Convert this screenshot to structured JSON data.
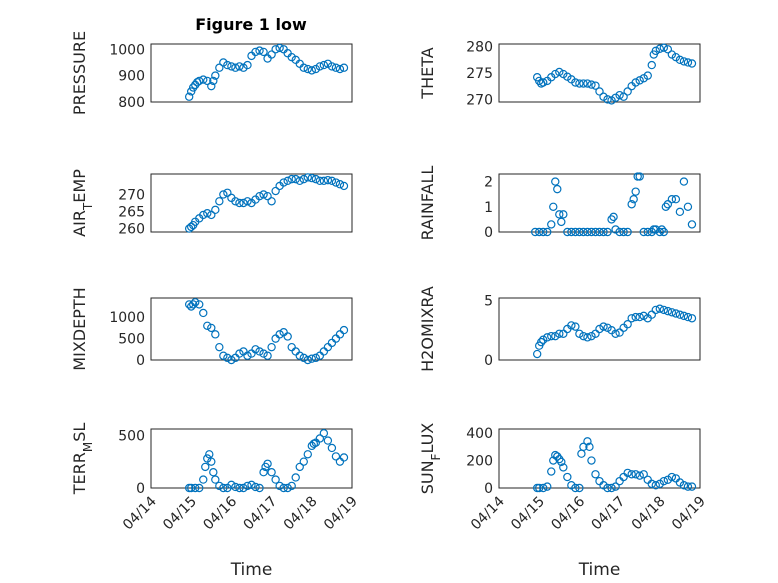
{
  "figure": {
    "title": "Figure 1 low",
    "marker_color": "#0072bd",
    "grid": "major and minor"
  },
  "chart_data": [
    {
      "type": "scatter",
      "ylabel": "PRESSURE",
      "xlabel": "",
      "xlim": [
        "04/14",
        "04/19"
      ],
      "xticks": [
        "04/14",
        "04/15",
        "04/16",
        "04/17",
        "04/18",
        "04/19"
      ],
      "ylim": [
        800,
        1020
      ],
      "yticks": [
        800,
        900,
        1000
      ],
      "x": [
        0.95,
        1.0,
        1.05,
        1.1,
        1.15,
        1.2,
        1.3,
        1.4,
        1.5,
        1.55,
        1.6,
        1.7,
        1.8,
        1.9,
        2.0,
        2.1,
        2.2,
        2.3,
        2.4,
        2.5,
        2.6,
        2.7,
        2.8,
        2.9,
        3.0,
        3.1,
        3.2,
        3.3,
        3.4,
        3.5,
        3.6,
        3.7,
        3.8,
        3.9,
        4.0,
        4.1,
        4.2,
        4.3,
        4.4,
        4.5,
        4.6,
        4.7,
        4.8
      ],
      "y": [
        820,
        840,
        855,
        865,
        875,
        880,
        885,
        880,
        860,
        880,
        900,
        930,
        950,
        940,
        935,
        930,
        935,
        930,
        940,
        975,
        990,
        995,
        990,
        965,
        980,
        1000,
        1005,
        1000,
        985,
        970,
        960,
        945,
        930,
        925,
        920,
        925,
        935,
        940,
        945,
        935,
        930,
        925,
        930
      ]
    },
    {
      "type": "scatter",
      "ylabel": "THETA",
      "xlabel": "",
      "xlim": [
        "04/14",
        "04/19"
      ],
      "xticks": [
        "04/14",
        "04/15",
        "04/16",
        "04/17",
        "04/18",
        "04/19"
      ],
      "ylim": [
        269.5,
        280.5
      ],
      "yticks": [
        270,
        275,
        280
      ],
      "x": [
        0.95,
        1.0,
        1.05,
        1.1,
        1.2,
        1.3,
        1.4,
        1.5,
        1.6,
        1.7,
        1.8,
        1.9,
        2.0,
        2.1,
        2.2,
        2.3,
        2.4,
        2.5,
        2.6,
        2.7,
        2.8,
        2.9,
        3.0,
        3.1,
        3.2,
        3.3,
        3.4,
        3.5,
        3.6,
        3.7,
        3.8,
        3.85,
        3.9,
        4.0,
        4.1,
        4.2,
        4.3,
        4.4,
        4.5,
        4.6,
        4.7,
        4.8
      ],
      "y": [
        274.2,
        273.5,
        273.0,
        273.2,
        273.5,
        274.2,
        274.8,
        275.2,
        274.8,
        274.3,
        273.8,
        273.2,
        273.0,
        273.0,
        273.0,
        272.8,
        272.6,
        271.5,
        270.5,
        270.0,
        269.8,
        270.3,
        270.8,
        270.5,
        271.5,
        272.5,
        273.2,
        273.6,
        274.0,
        274.5,
        276.5,
        278.5,
        279.2,
        279.6,
        279.8,
        279.5,
        278.5,
        278.0,
        277.5,
        277.2,
        277.0,
        276.8
      ]
    },
    {
      "type": "scatter",
      "ylabel": "AIR_TEMP",
      "xlabel": "",
      "xlim": [
        "04/14",
        "04/19"
      ],
      "xticks": [
        "04/14",
        "04/15",
        "04/16",
        "04/17",
        "04/18",
        "04/19"
      ],
      "ylim": [
        259,
        276
      ],
      "yticks": [
        260,
        265,
        270
      ],
      "x": [
        0.95,
        1.0,
        1.05,
        1.1,
        1.2,
        1.3,
        1.4,
        1.5,
        1.6,
        1.7,
        1.8,
        1.9,
        2.0,
        2.1,
        2.2,
        2.3,
        2.4,
        2.5,
        2.6,
        2.7,
        2.8,
        2.9,
        3.0,
        3.1,
        3.2,
        3.3,
        3.4,
        3.5,
        3.6,
        3.7,
        3.8,
        3.9,
        4.0,
        4.1,
        4.2,
        4.3,
        4.4,
        4.5,
        4.6,
        4.7,
        4.8
      ],
      "y": [
        260,
        260.5,
        261,
        262,
        263,
        264,
        264.5,
        264,
        265.5,
        268,
        270,
        270.5,
        269,
        268,
        267.5,
        267.5,
        268,
        267.5,
        268.5,
        269.5,
        270,
        269.5,
        268,
        271,
        272.5,
        273.5,
        274,
        274.5,
        274.5,
        274,
        274.5,
        275,
        274.8,
        274.5,
        274,
        274,
        274.2,
        274,
        273.5,
        273,
        272.5
      ]
    },
    {
      "type": "scatter",
      "ylabel": "RAINFALL",
      "xlabel": "",
      "xlim": [
        "04/14",
        "04/19"
      ],
      "xticks": [
        "04/14",
        "04/15",
        "04/16",
        "04/17",
        "04/18",
        "04/19"
      ],
      "ylim": [
        0,
        2.3
      ],
      "yticks": [
        0,
        1,
        2
      ],
      "x": [
        0.9,
        1.0,
        1.1,
        1.2,
        1.3,
        1.35,
        1.4,
        1.45,
        1.5,
        1.55,
        1.6,
        1.7,
        1.8,
        1.9,
        2.0,
        2.1,
        2.2,
        2.3,
        2.4,
        2.5,
        2.6,
        2.7,
        2.8,
        2.85,
        2.9,
        3.0,
        3.1,
        3.2,
        3.3,
        3.35,
        3.4,
        3.45,
        3.5,
        3.6,
        3.7,
        3.8,
        3.85,
        3.9,
        4.0,
        4.05,
        4.1,
        4.15,
        4.2,
        4.3,
        4.4,
        4.5,
        4.6,
        4.7,
        4.8
      ],
      "y": [
        0,
        0,
        0,
        0,
        0.3,
        1.0,
        2.0,
        1.7,
        0.7,
        0.4,
        0.7,
        0,
        0,
        0,
        0,
        0,
        0,
        0,
        0,
        0,
        0,
        0,
        0.5,
        0.6,
        0.1,
        0,
        0,
        0,
        1.1,
        1.3,
        1.6,
        2.2,
        2.2,
        0,
        0,
        0,
        0.1,
        0.1,
        0,
        0.1,
        0,
        1.0,
        1.1,
        1.3,
        1.3,
        0.8,
        2.0,
        1.0,
        0.3
      ]
    },
    {
      "type": "scatter",
      "ylabel": "MIXDEPTH",
      "xlabel": "",
      "xlim": [
        "04/14",
        "04/19"
      ],
      "xticks": [
        "04/14",
        "04/15",
        "04/16",
        "04/17",
        "04/18",
        "04/19"
      ],
      "ylim": [
        0,
        1450
      ],
      "yticks": [
        0,
        500,
        1000
      ],
      "x": [
        0.95,
        1.0,
        1.05,
        1.1,
        1.2,
        1.3,
        1.4,
        1.5,
        1.6,
        1.7,
        1.8,
        1.9,
        2.0,
        2.1,
        2.2,
        2.3,
        2.4,
        2.5,
        2.6,
        2.7,
        2.8,
        2.9,
        3.0,
        3.1,
        3.2,
        3.3,
        3.4,
        3.5,
        3.6,
        3.7,
        3.8,
        3.9,
        4.0,
        4.1,
        4.2,
        4.3,
        4.4,
        4.5,
        4.6,
        4.7,
        4.8
      ],
      "y": [
        1300,
        1250,
        1300,
        1350,
        1300,
        1100,
        800,
        750,
        600,
        300,
        100,
        50,
        0,
        50,
        150,
        200,
        100,
        150,
        250,
        200,
        150,
        100,
        300,
        500,
        600,
        650,
        550,
        300,
        200,
        100,
        50,
        0,
        30,
        50,
        100,
        200,
        300,
        400,
        500,
        600,
        700
      ]
    },
    {
      "type": "scatter",
      "ylabel": "H2OMIXRA",
      "xlabel": "",
      "xlim": [
        "04/14",
        "04/19"
      ],
      "xticks": [
        "04/14",
        "04/15",
        "04/16",
        "04/17",
        "04/18",
        "04/19"
      ],
      "ylim": [
        0,
        5.2
      ],
      "yticks": [
        0,
        5
      ],
      "x": [
        0.95,
        1.0,
        1.05,
        1.1,
        1.2,
        1.3,
        1.4,
        1.5,
        1.6,
        1.7,
        1.8,
        1.9,
        2.0,
        2.1,
        2.2,
        2.3,
        2.4,
        2.5,
        2.6,
        2.7,
        2.8,
        2.9,
        3.0,
        3.1,
        3.2,
        3.3,
        3.4,
        3.5,
        3.6,
        3.7,
        3.8,
        3.9,
        4.0,
        4.1,
        4.2,
        4.3,
        4.4,
        4.5,
        4.6,
        4.7,
        4.8
      ],
      "y": [
        0.5,
        1.2,
        1.5,
        1.7,
        1.9,
        2.0,
        2.0,
        2.2,
        2.2,
        2.6,
        2.9,
        2.8,
        2.2,
        2.0,
        1.9,
        2.0,
        2.2,
        2.6,
        2.8,
        2.7,
        2.5,
        2.2,
        2.3,
        2.7,
        3.0,
        3.5,
        3.6,
        3.6,
        3.7,
        3.5,
        3.8,
        4.2,
        4.3,
        4.2,
        4.1,
        4.0,
        3.9,
        3.8,
        3.7,
        3.6,
        3.5
      ]
    },
    {
      "type": "scatter",
      "ylabel": "TERR_MSL",
      "xlabel": "Time",
      "xlim": [
        "04/14",
        "04/19"
      ],
      "xticks": [
        "04/14",
        "04/15",
        "04/16",
        "04/17",
        "04/18",
        "04/19"
      ],
      "ylim": [
        0,
        560
      ],
      "yticks": [
        0,
        500
      ],
      "x": [
        0.95,
        1.0,
        1.1,
        1.2,
        1.3,
        1.35,
        1.4,
        1.45,
        1.5,
        1.55,
        1.6,
        1.7,
        1.8,
        1.9,
        2.0,
        2.1,
        2.2,
        2.3,
        2.4,
        2.5,
        2.6,
        2.7,
        2.8,
        2.85,
        2.9,
        3.0,
        3.1,
        3.2,
        3.3,
        3.4,
        3.5,
        3.6,
        3.7,
        3.8,
        3.9,
        4.0,
        4.05,
        4.1,
        4.2,
        4.3,
        4.4,
        4.5,
        4.6,
        4.7,
        4.8
      ],
      "y": [
        0,
        0,
        0,
        0,
        80,
        200,
        280,
        320,
        250,
        150,
        80,
        20,
        0,
        0,
        30,
        10,
        0,
        0,
        20,
        30,
        10,
        0,
        150,
        200,
        230,
        150,
        80,
        20,
        0,
        0,
        20,
        100,
        200,
        250,
        320,
        400,
        420,
        430,
        470,
        520,
        450,
        380,
        300,
        250,
        290
      ]
    },
    {
      "type": "scatter",
      "ylabel": "SUN_FLUX",
      "xlabel": "Time",
      "xlim": [
        "04/14",
        "04/19"
      ],
      "xticks": [
        "04/14",
        "04/15",
        "04/16",
        "04/17",
        "04/18",
        "04/19"
      ],
      "ylim": [
        0,
        430
      ],
      "yticks": [
        0,
        200,
        400
      ],
      "x": [
        0.95,
        1.0,
        1.1,
        1.2,
        1.3,
        1.35,
        1.4,
        1.45,
        1.5,
        1.55,
        1.6,
        1.7,
        1.8,
        1.9,
        2.0,
        2.05,
        2.1,
        2.2,
        2.25,
        2.3,
        2.4,
        2.5,
        2.6,
        2.7,
        2.8,
        2.9,
        3.0,
        3.1,
        3.2,
        3.3,
        3.4,
        3.5,
        3.6,
        3.7,
        3.8,
        3.9,
        4.0,
        4.1,
        4.2,
        4.3,
        4.4,
        4.5,
        4.6,
        4.7,
        4.8
      ],
      "y": [
        0,
        0,
        0,
        10,
        120,
        200,
        240,
        230,
        210,
        190,
        150,
        80,
        20,
        0,
        0,
        250,
        300,
        340,
        300,
        200,
        100,
        50,
        20,
        0,
        0,
        10,
        50,
        80,
        110,
        100,
        100,
        90,
        100,
        60,
        30,
        20,
        30,
        50,
        60,
        80,
        70,
        40,
        20,
        10,
        10
      ]
    }
  ]
}
